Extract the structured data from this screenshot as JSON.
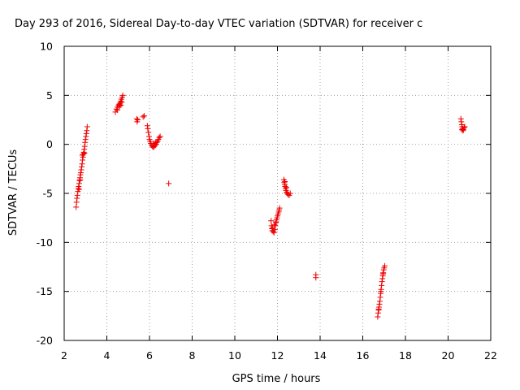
{
  "chart_data": {
    "type": "scatter",
    "title": "Day 293 of 2016, Sidereal Day-to-day VTEC variation (SDTVAR) for receiver c",
    "xlabel": "GPS time / hours",
    "ylabel": "SDTVAR / TECUs",
    "xlim": [
      2,
      22
    ],
    "ylim": [
      -20,
      10
    ],
    "x_ticks": [
      2,
      4,
      6,
      8,
      10,
      12,
      14,
      16,
      18,
      20,
      22
    ],
    "y_ticks": [
      10,
      5,
      0,
      -5,
      -10,
      -15,
      -20
    ],
    "x_tick_labels": [
      "2",
      "4",
      "6",
      "8",
      "10",
      "12",
      "14",
      "16",
      "18",
      "20",
      "22"
    ],
    "y_tick_labels": [
      "10",
      "5",
      "0",
      "-5",
      "-10",
      "-15",
      "-20"
    ],
    "grid": true,
    "marker": "+",
    "color": "#ee0000",
    "points": [
      [
        2.56,
        -6.4
      ],
      [
        2.58,
        -5.9
      ],
      [
        2.6,
        -5.5
      ],
      [
        2.62,
        -5.2
      ],
      [
        2.64,
        -4.8
      ],
      [
        2.66,
        -4.5
      ],
      [
        2.68,
        -4.3
      ],
      [
        2.7,
        -4.0
      ],
      [
        2.72,
        -3.7
      ],
      [
        2.74,
        -3.4
      ],
      [
        2.76,
        -3.1
      ],
      [
        2.78,
        -2.9
      ],
      [
        2.8,
        -2.6
      ],
      [
        2.82,
        -2.3
      ],
      [
        2.84,
        -2.0
      ],
      [
        2.86,
        -1.6
      ],
      [
        2.88,
        -1.3
      ],
      [
        2.9,
        -1.0
      ],
      [
        2.92,
        -0.8
      ],
      [
        2.94,
        -0.5
      ],
      [
        2.96,
        -0.2
      ],
      [
        2.98,
        0.2
      ],
      [
        3.0,
        0.5
      ],
      [
        3.02,
        0.8
      ],
      [
        3.04,
        1.1
      ],
      [
        3.06,
        1.4
      ],
      [
        3.08,
        1.8
      ],
      [
        2.7,
        -4.6
      ],
      [
        2.75,
        -3.6
      ],
      [
        2.85,
        -1.1
      ],
      [
        2.95,
        -0.9
      ],
      [
        4.4,
        3.3
      ],
      [
        4.45,
        3.6
      ],
      [
        4.5,
        3.8
      ],
      [
        4.55,
        4.0
      ],
      [
        4.6,
        3.9
      ],
      [
        4.62,
        4.2
      ],
      [
        4.65,
        4.4
      ],
      [
        4.68,
        4.6
      ],
      [
        4.7,
        4.3
      ],
      [
        4.72,
        4.8
      ],
      [
        4.75,
        5.0
      ],
      [
        4.5,
        3.5
      ],
      [
        4.58,
        4.1
      ],
      [
        4.66,
        4.0
      ],
      [
        5.4,
        2.6
      ],
      [
        5.42,
        2.3
      ],
      [
        5.45,
        2.5
      ],
      [
        5.7,
        2.8
      ],
      [
        5.75,
        2.9
      ],
      [
        5.9,
        1.9
      ],
      [
        5.92,
        1.6
      ],
      [
        5.95,
        1.2
      ],
      [
        5.98,
        0.8
      ],
      [
        6.0,
        0.5
      ],
      [
        6.03,
        0.3
      ],
      [
        6.06,
        0.1
      ],
      [
        6.1,
        -0.1
      ],
      [
        6.14,
        -0.2
      ],
      [
        6.18,
        -0.3
      ],
      [
        6.22,
        -0.2
      ],
      [
        6.26,
        -0.1
      ],
      [
        6.3,
        0.0
      ],
      [
        6.34,
        0.2
      ],
      [
        6.38,
        0.3
      ],
      [
        6.42,
        0.5
      ],
      [
        6.46,
        0.7
      ],
      [
        6.5,
        0.8
      ],
      [
        6.2,
        0.1
      ],
      [
        6.28,
        0.2
      ],
      [
        6.9,
        -4.0
      ],
      [
        11.7,
        -7.8
      ],
      [
        11.72,
        -8.3
      ],
      [
        11.74,
        -8.6
      ],
      [
        11.76,
        -8.8
      ],
      [
        11.8,
        -8.9
      ],
      [
        11.84,
        -9.0
      ],
      [
        11.88,
        -8.7
      ],
      [
        11.9,
        -8.3
      ],
      [
        11.92,
        -8.0
      ],
      [
        11.95,
        -7.7
      ],
      [
        11.98,
        -7.5
      ],
      [
        12.0,
        -7.3
      ],
      [
        12.03,
        -7.1
      ],
      [
        12.06,
        -6.9
      ],
      [
        12.08,
        -6.7
      ],
      [
        12.1,
        -6.5
      ],
      [
        11.78,
        -8.5
      ],
      [
        11.86,
        -8.2
      ],
      [
        11.94,
        -7.9
      ],
      [
        12.3,
        -3.6
      ],
      [
        12.32,
        -3.9
      ],
      [
        12.34,
        -4.1
      ],
      [
        12.36,
        -4.3
      ],
      [
        12.38,
        -4.5
      ],
      [
        12.4,
        -4.7
      ],
      [
        12.43,
        -4.9
      ],
      [
        12.46,
        -5.0
      ],
      [
        12.5,
        -5.1
      ],
      [
        12.55,
        -5.2
      ],
      [
        12.6,
        -5.0
      ],
      [
        12.35,
        -3.8
      ],
      [
        12.42,
        -4.4
      ],
      [
        13.8,
        -13.3
      ],
      [
        13.8,
        -13.6
      ],
      [
        16.7,
        -17.6
      ],
      [
        16.72,
        -17.2
      ],
      [
        16.74,
        -16.9
      ],
      [
        16.76,
        -16.6
      ],
      [
        16.78,
        -16.3
      ],
      [
        16.8,
        -16.0
      ],
      [
        16.82,
        -15.6
      ],
      [
        16.84,
        -15.2
      ],
      [
        16.86,
        -14.8
      ],
      [
        16.88,
        -14.4
      ],
      [
        16.9,
        -14.0
      ],
      [
        16.92,
        -13.7
      ],
      [
        16.94,
        -13.4
      ],
      [
        16.96,
        -13.1
      ],
      [
        16.98,
        -12.8
      ],
      [
        17.0,
        -12.6
      ],
      [
        17.03,
        -12.4
      ],
      [
        16.75,
        -16.8
      ],
      [
        16.85,
        -15.0
      ],
      [
        16.95,
        -13.2
      ],
      [
        20.6,
        2.6
      ],
      [
        20.62,
        2.3
      ],
      [
        20.64,
        2.0
      ],
      [
        20.66,
        1.8
      ],
      [
        20.68,
        1.6
      ],
      [
        20.7,
        1.4
      ],
      [
        20.72,
        1.5
      ],
      [
        20.75,
        1.7
      ],
      [
        20.78,
        1.8
      ],
      [
        20.65,
        1.5
      ]
    ]
  }
}
